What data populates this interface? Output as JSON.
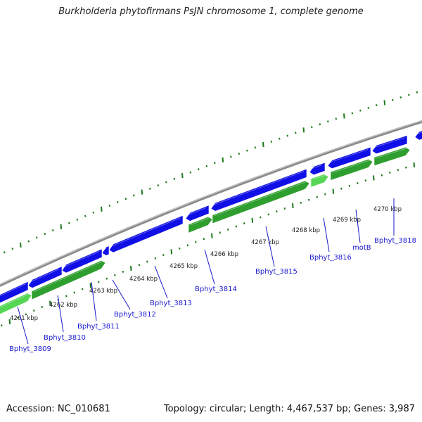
{
  "title": "Burkholderia phytofirmans PsJN chromosome 1, complete genome",
  "footer": {
    "accession": "Accession: NC_010681",
    "summary": "Topology: circular; Length: 4,467,537 bp; Genes: 3,987"
  },
  "colors": {
    "forward_gene": "#1010e6",
    "reverse_gene": "#2e9e2e",
    "reverse_gene_light": "#55d655",
    "backbone": "#8a8a8a",
    "tick": "#1e7a1e",
    "label": "#1a1acc"
  },
  "kbp_labels": [
    "4261 kbp",
    "4262 kbp",
    "4263 kbp",
    "4264 kbp",
    "4265 kbp",
    "4266 kbp",
    "4267 kbp",
    "4268 kbp",
    "4269 kbp",
    "4270 kbp"
  ],
  "gene_labels": [
    "Bphyt_3809",
    "Bphyt_3810",
    "Bphyt_3811",
    "Bphyt_3812",
    "Bphyt_3813",
    "Bphyt_3814",
    "Bphyt_3815",
    "Bphyt_3816",
    "motB",
    "Bphyt_3818"
  ]
}
